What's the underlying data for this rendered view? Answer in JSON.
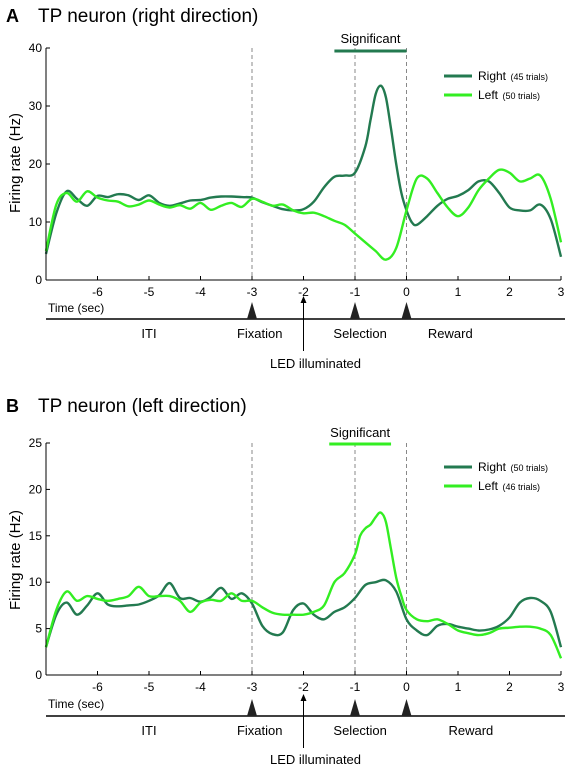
{
  "chart_data": [
    {
      "panel_letter": "A",
      "title": "TP neuron (right direction)",
      "type": "line",
      "ylabel": "Firing rate (Hz)",
      "xlabel": "Time (sec)",
      "xlim": [
        -7,
        3
      ],
      "ylim": [
        0,
        40
      ],
      "xticks": [
        -6,
        -5,
        -4,
        -3,
        -2,
        -1,
        0,
        1,
        2,
        3
      ],
      "yticks": [
        0,
        10,
        20,
        30,
        40
      ],
      "grid": false,
      "legend_position": "top-right",
      "significant": {
        "label": "Significant",
        "x_start": -1.4,
        "x_end": 0.0
      },
      "dashed_lines_x": [
        -3,
        -1,
        0
      ],
      "event_markers_x": [
        -3,
        -1,
        0
      ],
      "epochs": [
        {
          "label": "ITI",
          "x": -5.0
        },
        {
          "label": "Fixation",
          "x": -2.85
        },
        {
          "label": "Selection",
          "x": -0.9
        },
        {
          "label": "Reward",
          "x": 0.85
        }
      ],
      "led": {
        "label": "LED illuminated",
        "x": -2.0
      },
      "series": [
        {
          "name": "Right",
          "trials": "(45 trials)",
          "color": "#237a50",
          "x": [
            -7.0,
            -6.8,
            -6.6,
            -6.4,
            -6.2,
            -6.0,
            -5.8,
            -5.6,
            -5.4,
            -5.2,
            -5.0,
            -4.8,
            -4.6,
            -4.4,
            -4.2,
            -4.0,
            -3.8,
            -3.6,
            -3.4,
            -3.2,
            -3.0,
            -2.8,
            -2.6,
            -2.4,
            -2.2,
            -2.0,
            -1.8,
            -1.6,
            -1.4,
            -1.2,
            -1.0,
            -0.8,
            -0.7,
            -0.6,
            -0.5,
            -0.4,
            -0.3,
            -0.2,
            -0.1,
            0.0,
            0.1,
            0.2,
            0.4,
            0.6,
            0.8,
            1.0,
            1.2,
            1.4,
            1.6,
            1.8,
            2.0,
            2.2,
            2.4,
            2.6,
            2.8,
            3.0
          ],
          "values": [
            4.5,
            11.5,
            15.3,
            14.0,
            12.8,
            14.5,
            14.3,
            14.8,
            14.6,
            13.8,
            14.6,
            13.3,
            12.8,
            13.2,
            13.7,
            13.8,
            14.2,
            14.4,
            14.4,
            14.3,
            14.2,
            13.4,
            12.8,
            12.2,
            12.0,
            12.2,
            13.5,
            16.0,
            17.8,
            18.0,
            18.5,
            23.0,
            27.5,
            32.0,
            33.5,
            31.5,
            26.0,
            20.0,
            15.0,
            12.0,
            10.0,
            9.5,
            11.0,
            12.8,
            14.0,
            14.5,
            15.5,
            17.0,
            17.0,
            15.0,
            12.5,
            12.0,
            12.0,
            13.0,
            10.5,
            4.0
          ]
        },
        {
          "name": "Left",
          "trials": "(50 trials)",
          "color": "#33ee22",
          "x": [
            -7.0,
            -6.8,
            -6.6,
            -6.4,
            -6.2,
            -6.0,
            -5.8,
            -5.6,
            -5.4,
            -5.2,
            -5.0,
            -4.8,
            -4.6,
            -4.4,
            -4.2,
            -4.0,
            -3.8,
            -3.6,
            -3.4,
            -3.2,
            -3.0,
            -2.8,
            -2.6,
            -2.4,
            -2.2,
            -2.0,
            -1.8,
            -1.6,
            -1.4,
            -1.2,
            -1.0,
            -0.8,
            -0.6,
            -0.4,
            -0.2,
            0.0,
            0.2,
            0.4,
            0.6,
            0.8,
            1.0,
            1.2,
            1.4,
            1.6,
            1.8,
            2.0,
            2.2,
            2.4,
            2.6,
            2.8,
            3.0
          ],
          "values": [
            5.0,
            13.0,
            15.0,
            13.5,
            15.3,
            14.2,
            13.7,
            13.5,
            12.7,
            13.0,
            13.7,
            13.0,
            12.5,
            12.9,
            12.3,
            13.3,
            12.1,
            12.8,
            13.3,
            12.6,
            14.0,
            13.5,
            12.8,
            13.0,
            12.0,
            11.5,
            11.6,
            11.0,
            10.2,
            9.5,
            8.0,
            6.5,
            5.0,
            3.5,
            5.5,
            12.0,
            17.5,
            17.5,
            15.0,
            12.5,
            11.0,
            12.5,
            15.5,
            17.5,
            19.0,
            18.5,
            17.0,
            17.5,
            18.0,
            14.0,
            6.5
          ]
        }
      ]
    },
    {
      "panel_letter": "B",
      "title": "TP neuron (left direction)",
      "type": "line",
      "ylabel": "Firing rate (Hz)",
      "xlabel": "Time (sec)",
      "xlim": [
        -7,
        3
      ],
      "ylim": [
        0,
        25
      ],
      "xticks": [
        -6,
        -5,
        -4,
        -3,
        -2,
        -1,
        0,
        1,
        2,
        3
      ],
      "yticks": [
        0,
        5,
        10,
        15,
        20,
        25
      ],
      "grid": false,
      "legend_position": "top-right",
      "significant": {
        "label": "Significant",
        "x_start": -1.5,
        "x_end": -0.3
      },
      "dashed_lines_x": [
        -3,
        -1,
        0
      ],
      "event_markers_x": [
        -3,
        -1,
        0
      ],
      "epochs": [
        {
          "label": "ITI",
          "x": -5.0
        },
        {
          "label": "Fixation",
          "x": -2.85
        },
        {
          "label": "Selection",
          "x": -0.9
        },
        {
          "label": "Reward",
          "x": 1.25
        }
      ],
      "led": {
        "label": "LED illuminated",
        "x": -2.0
      },
      "series": [
        {
          "name": "Right",
          "trials": "(50 trials)",
          "color": "#237a50",
          "x": [
            -7.0,
            -6.8,
            -6.6,
            -6.4,
            -6.2,
            -6.0,
            -5.8,
            -5.6,
            -5.4,
            -5.2,
            -5.0,
            -4.8,
            -4.6,
            -4.4,
            -4.2,
            -4.0,
            -3.8,
            -3.6,
            -3.4,
            -3.2,
            -3.0,
            -2.8,
            -2.6,
            -2.4,
            -2.2,
            -2.0,
            -1.8,
            -1.6,
            -1.4,
            -1.2,
            -1.0,
            -0.8,
            -0.6,
            -0.4,
            -0.2,
            0.0,
            0.2,
            0.4,
            0.6,
            0.8,
            1.0,
            1.2,
            1.4,
            1.6,
            1.8,
            2.0,
            2.2,
            2.4,
            2.6,
            2.8,
            3.0
          ],
          "values": [
            3.0,
            6.5,
            7.8,
            6.5,
            7.5,
            8.8,
            7.6,
            7.4,
            7.5,
            7.6,
            8.0,
            8.6,
            9.9,
            8.3,
            8.3,
            7.9,
            8.4,
            9.4,
            8.2,
            8.8,
            7.7,
            5.3,
            4.4,
            4.6,
            7.0,
            7.7,
            6.5,
            6.0,
            6.8,
            7.3,
            8.3,
            9.7,
            10.0,
            10.2,
            9.0,
            6.0,
            4.8,
            4.3,
            5.3,
            5.5,
            5.2,
            5.0,
            4.8,
            4.9,
            5.3,
            6.2,
            7.8,
            8.3,
            8.0,
            6.8,
            3.0
          ]
        },
        {
          "name": "Left",
          "trials": "(46 trials)",
          "color": "#33ee22",
          "x": [
            -7.0,
            -6.8,
            -6.6,
            -6.4,
            -6.2,
            -6.0,
            -5.8,
            -5.6,
            -5.4,
            -5.2,
            -5.0,
            -4.8,
            -4.6,
            -4.4,
            -4.2,
            -4.0,
            -3.8,
            -3.6,
            -3.4,
            -3.2,
            -3.0,
            -2.8,
            -2.6,
            -2.4,
            -2.2,
            -2.0,
            -1.8,
            -1.6,
            -1.4,
            -1.2,
            -1.0,
            -0.9,
            -0.8,
            -0.7,
            -0.6,
            -0.5,
            -0.4,
            -0.3,
            -0.2,
            -0.1,
            0.0,
            0.2,
            0.4,
            0.6,
            0.8,
            1.0,
            1.2,
            1.4,
            1.6,
            1.8,
            2.0,
            2.2,
            2.4,
            2.6,
            2.8,
            3.0
          ],
          "values": [
            3.0,
            7.0,
            9.0,
            8.0,
            8.5,
            8.2,
            8.0,
            8.2,
            8.5,
            9.5,
            8.5,
            8.5,
            8.5,
            8.0,
            6.8,
            7.8,
            8.1,
            8.0,
            8.8,
            8.0,
            8.0,
            7.3,
            6.7,
            6.5,
            6.5,
            6.5,
            6.8,
            7.5,
            10.0,
            11.0,
            13.0,
            15.0,
            15.8,
            16.2,
            17.0,
            17.5,
            16.5,
            13.5,
            10.5,
            8.5,
            7.0,
            6.0,
            5.8,
            6.0,
            5.5,
            4.8,
            4.5,
            4.3,
            4.5,
            5.0,
            5.1,
            5.2,
            5.2,
            5.0,
            4.3,
            1.8
          ]
        }
      ]
    }
  ]
}
